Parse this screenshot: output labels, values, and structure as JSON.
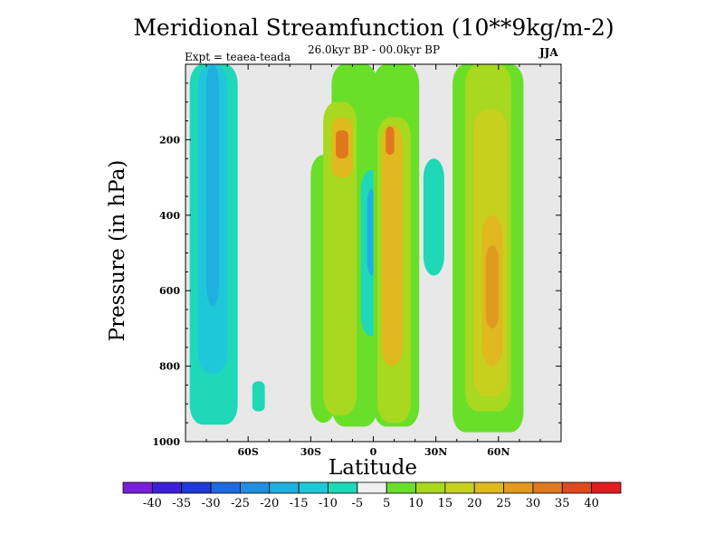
{
  "title": "Meridional Streamfunction (10**9kg/m-2)",
  "subtitle": "26.0kyr BP - 00.0kyr BP",
  "experiment": "Expt = teaea-teada",
  "season": "JJA",
  "chart_data": {
    "type": "heatmap",
    "title": "Meridional Streamfunction (10**9kg/m-2)",
    "xlabel": "Latitude",
    "ylabel": "Pressure (in hPa)",
    "xlim": [
      -90,
      90
    ],
    "ylim": [
      1000,
      0
    ],
    "x_ticks": [
      {
        "value": -60,
        "label": "60S"
      },
      {
        "value": -30,
        "label": "30S"
      },
      {
        "value": 0,
        "label": "0"
      },
      {
        "value": 30,
        "label": "30N"
      },
      {
        "value": 60,
        "label": "60N"
      }
    ],
    "y_ticks": [
      {
        "value": 200,
        "label": "200"
      },
      {
        "value": 400,
        "label": "400"
      },
      {
        "value": 600,
        "label": "600"
      },
      {
        "value": 800,
        "label": "800"
      },
      {
        "value": 1000,
        "label": "1000"
      }
    ],
    "colorbar": {
      "labels": [
        "-40",
        "-35",
        "-30",
        "-25",
        "-20",
        "-15",
        "-10",
        "-5",
        "5",
        "10",
        "15",
        "20",
        "25",
        "30",
        "35",
        "40"
      ],
      "colors": [
        "#7a1fd8",
        "#3d1fd8",
        "#1f3ad8",
        "#1f6ae0",
        "#1f8fe0",
        "#1fb0e0",
        "#1fc8d8",
        "#1fd8b8",
        "#f0f0f0",
        "#6adf2a",
        "#a8d81f",
        "#c8d01f",
        "#e0b81f",
        "#e09a1f",
        "#e0781f",
        "#e04a1f",
        "#e01f1f"
      ]
    },
    "background_color": "#e8e8e8",
    "cells": [
      {
        "lat_min": -88,
        "lat_max": -65,
        "p_top": 0,
        "p_bottom": 955,
        "level": "-10"
      },
      {
        "lat_min": -84,
        "lat_max": -70,
        "p_top": 0,
        "p_bottom": 820,
        "level": "-15"
      },
      {
        "lat_min": -80,
        "lat_max": -74,
        "p_top": 0,
        "p_bottom": 640,
        "level": "-20"
      },
      {
        "lat_min": -58,
        "lat_max": -52,
        "p_top": 840,
        "p_bottom": 920,
        "level": "-10"
      },
      {
        "lat_min": -20,
        "lat_max": 2,
        "p_top": 0,
        "p_bottom": 960,
        "level": "5"
      },
      {
        "lat_min": -30,
        "lat_max": -18,
        "p_top": 240,
        "p_bottom": 950,
        "level": "5"
      },
      {
        "lat_min": -24,
        "lat_max": -8,
        "p_top": 100,
        "p_bottom": 930,
        "level": "10"
      },
      {
        "lat_min": -20,
        "lat_max": -10,
        "p_top": 140,
        "p_bottom": 300,
        "level": "20"
      },
      {
        "lat_min": -18,
        "lat_max": -12,
        "p_top": 175,
        "p_bottom": 250,
        "level": "30"
      },
      {
        "lat_min": -6,
        "lat_max": 4,
        "p_top": 280,
        "p_bottom": 720,
        "level": "-10"
      },
      {
        "lat_min": -3,
        "lat_max": 2,
        "p_top": 330,
        "p_bottom": 560,
        "level": "-20"
      },
      {
        "lat_min": 0,
        "lat_max": 22,
        "p_top": 0,
        "p_bottom": 960,
        "level": "5"
      },
      {
        "lat_min": 2,
        "lat_max": 18,
        "p_top": 140,
        "p_bottom": 950,
        "level": "10"
      },
      {
        "lat_min": 4,
        "lat_max": 14,
        "p_top": 160,
        "p_bottom": 800,
        "level": "20"
      },
      {
        "lat_min": 6,
        "lat_max": 10,
        "p_top": 165,
        "p_bottom": 240,
        "level": "30"
      },
      {
        "lat_min": 24,
        "lat_max": 34,
        "p_top": 250,
        "p_bottom": 560,
        "level": "-10"
      },
      {
        "lat_min": 38,
        "lat_max": 72,
        "p_top": 0,
        "p_bottom": 975,
        "level": "5"
      },
      {
        "lat_min": 44,
        "lat_max": 66,
        "p_top": 0,
        "p_bottom": 920,
        "level": "10"
      },
      {
        "lat_min": 48,
        "lat_max": 64,
        "p_top": 120,
        "p_bottom": 880,
        "level": "15"
      },
      {
        "lat_min": 52,
        "lat_max": 62,
        "p_top": 400,
        "p_bottom": 800,
        "level": "20"
      },
      {
        "lat_min": 54,
        "lat_max": 60,
        "p_top": 480,
        "p_bottom": 700,
        "level": "25"
      }
    ]
  }
}
